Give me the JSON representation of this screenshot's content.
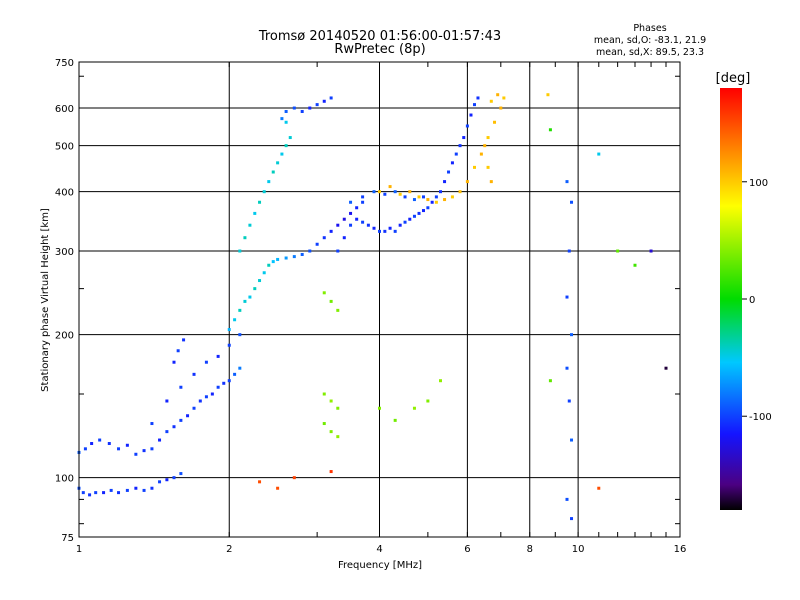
{
  "chart_data": {
    "type": "scatter",
    "title": "Tromsø 20140520 01:56:00-01:57:43",
    "subtitle": "RwPretec (8p)",
    "xlabel": "Frequency [MHz]",
    "ylabel": "Stationary phase Virtual Height [km]",
    "xscale": "log",
    "yscale": "log",
    "xlim": [
      1,
      16
    ],
    "ylim": [
      75,
      750
    ],
    "x_ticks": [
      1,
      2,
      4,
      6,
      8,
      10,
      16
    ],
    "y_ticks": [
      75,
      100,
      200,
      300,
      400,
      500,
      600,
      750
    ],
    "grid": true,
    "info": {
      "heading": "Phases",
      "o_line": "mean, sd,O: -83.1, 21.9",
      "x_line": "mean, sd,X: 89.5, 23.3"
    },
    "colorbar": {
      "label": "[deg]",
      "range": [
        -180,
        180
      ],
      "ticks": [
        -100,
        0,
        100
      ],
      "tick_labels": [
        "-100",
        "0",
        "100"
      ]
    },
    "series": [
      {
        "points": [
          [
            1.0,
            95,
            -95
          ],
          [
            1.02,
            93,
            -100
          ],
          [
            1.05,
            92,
            -105
          ],
          [
            1.08,
            93,
            -100
          ],
          [
            1.12,
            93,
            -110
          ],
          [
            1.16,
            94,
            -100
          ],
          [
            1.2,
            93,
            -105
          ],
          [
            1.25,
            94,
            -100
          ],
          [
            1.3,
            95,
            -110
          ],
          [
            1.35,
            94,
            -100
          ],
          [
            1.4,
            95,
            -105
          ],
          [
            1.45,
            98,
            -100
          ],
          [
            1.5,
            99,
            -110
          ],
          [
            1.55,
            100,
            -100
          ],
          [
            1.6,
            102,
            -95
          ],
          [
            1.0,
            113,
            -90
          ],
          [
            1.03,
            115,
            -100
          ],
          [
            1.06,
            118,
            -110
          ],
          [
            1.1,
            120,
            -100
          ],
          [
            1.15,
            118,
            -105
          ],
          [
            1.2,
            115,
            -100
          ],
          [
            1.25,
            117,
            -110
          ],
          [
            1.3,
            112,
            -100
          ],
          [
            1.35,
            114,
            -105
          ],
          [
            1.4,
            115,
            -100
          ],
          [
            1.45,
            120,
            -110
          ],
          [
            1.5,
            125,
            -100
          ],
          [
            1.55,
            128,
            -105
          ],
          [
            1.6,
            132,
            -100
          ],
          [
            1.65,
            135,
            -110
          ],
          [
            1.7,
            140,
            -100
          ],
          [
            1.75,
            145,
            -105
          ],
          [
            1.8,
            148,
            -100
          ],
          [
            1.85,
            150,
            -110
          ],
          [
            1.9,
            155,
            -100
          ],
          [
            1.95,
            158,
            -105
          ],
          [
            2.0,
            160,
            -100
          ],
          [
            2.05,
            165,
            -90
          ],
          [
            2.1,
            170,
            -80
          ],
          [
            1.4,
            130,
            -100
          ],
          [
            1.5,
            145,
            -110
          ],
          [
            1.6,
            155,
            -100
          ],
          [
            1.7,
            165,
            -105
          ],
          [
            1.8,
            175,
            -100
          ],
          [
            1.9,
            180,
            -110
          ],
          [
            2.0,
            190,
            -100
          ],
          [
            2.1,
            200,
            -95
          ],
          [
            1.55,
            175,
            -110
          ],
          [
            1.58,
            185,
            -100
          ],
          [
            1.62,
            195,
            -105
          ],
          [
            2.0,
            205,
            -60
          ],
          [
            2.05,
            215,
            -50
          ],
          [
            2.1,
            225,
            -40
          ],
          [
            2.15,
            235,
            -45
          ],
          [
            2.2,
            240,
            -50
          ],
          [
            2.25,
            250,
            -40
          ],
          [
            2.3,
            260,
            -45
          ],
          [
            2.35,
            270,
            -50
          ],
          [
            2.4,
            280,
            -40
          ],
          [
            2.45,
            285,
            -55
          ],
          [
            2.5,
            288,
            -60
          ],
          [
            2.6,
            290,
            -70
          ],
          [
            2.7,
            292,
            -80
          ],
          [
            2.8,
            295,
            -90
          ],
          [
            2.9,
            300,
            -95
          ],
          [
            3.0,
            310,
            -100
          ],
          [
            3.1,
            320,
            -105
          ],
          [
            3.2,
            330,
            -110
          ],
          [
            3.3,
            340,
            -120
          ],
          [
            3.4,
            350,
            -125
          ],
          [
            3.5,
            360,
            -120
          ],
          [
            3.6,
            370,
            -110
          ],
          [
            3.7,
            380,
            -100
          ],
          [
            2.1,
            300,
            -45
          ],
          [
            2.15,
            320,
            -40
          ],
          [
            2.2,
            340,
            -45
          ],
          [
            2.25,
            360,
            -50
          ],
          [
            2.3,
            380,
            -40
          ],
          [
            2.35,
            400,
            -45
          ],
          [
            2.4,
            420,
            -50
          ],
          [
            2.45,
            440,
            -40
          ],
          [
            2.5,
            460,
            -45
          ],
          [
            2.55,
            480,
            -50
          ],
          [
            2.6,
            500,
            -40
          ],
          [
            2.65,
            520,
            -45
          ],
          [
            2.6,
            560,
            -50
          ],
          [
            2.55,
            570,
            -80
          ],
          [
            2.6,
            590,
            -90
          ],
          [
            2.7,
            600,
            -95
          ],
          [
            2.8,
            590,
            -100
          ],
          [
            2.9,
            600,
            -110
          ],
          [
            3.0,
            610,
            -100
          ],
          [
            3.1,
            620,
            -110
          ],
          [
            3.2,
            630,
            -100
          ],
          [
            3.3,
            300,
            -100
          ],
          [
            3.4,
            320,
            -110
          ],
          [
            3.5,
            340,
            -100
          ],
          [
            3.6,
            350,
            -110
          ],
          [
            3.7,
            345,
            -100
          ],
          [
            3.8,
            340,
            -105
          ],
          [
            3.9,
            335,
            -110
          ],
          [
            4.0,
            330,
            -100
          ],
          [
            4.1,
            330,
            -105
          ],
          [
            4.2,
            335,
            -110
          ],
          [
            4.3,
            330,
            -100
          ],
          [
            4.4,
            340,
            -110
          ],
          [
            4.5,
            345,
            -100
          ],
          [
            4.6,
            350,
            -110
          ],
          [
            4.7,
            355,
            -100
          ],
          [
            4.8,
            360,
            -105
          ],
          [
            4.9,
            365,
            -110
          ],
          [
            5.0,
            370,
            -100
          ],
          [
            5.1,
            380,
            -110
          ],
          [
            5.2,
            390,
            -100
          ],
          [
            5.3,
            400,
            -105
          ],
          [
            5.4,
            420,
            -110
          ],
          [
            5.5,
            440,
            -100
          ],
          [
            5.6,
            460,
            -110
          ],
          [
            5.7,
            480,
            -100
          ],
          [
            5.8,
            500,
            -105
          ],
          [
            5.9,
            520,
            -110
          ],
          [
            6.0,
            550,
            -100
          ],
          [
            6.1,
            580,
            -110
          ],
          [
            6.2,
            610,
            -100
          ],
          [
            6.3,
            630,
            -105
          ],
          [
            3.5,
            380,
            -90
          ],
          [
            3.7,
            390,
            -100
          ],
          [
            3.9,
            400,
            -90
          ],
          [
            4.1,
            395,
            -100
          ],
          [
            4.3,
            400,
            -90
          ],
          [
            4.5,
            390,
            -100
          ],
          [
            4.7,
            385,
            -90
          ],
          [
            4.9,
            390,
            -100
          ],
          [
            4.0,
            400,
            100
          ],
          [
            4.2,
            410,
            110
          ],
          [
            4.4,
            395,
            100
          ],
          [
            4.6,
            400,
            110
          ],
          [
            4.8,
            390,
            100
          ],
          [
            5.0,
            385,
            110
          ],
          [
            5.2,
            380,
            100
          ],
          [
            5.4,
            385,
            110
          ],
          [
            5.6,
            390,
            100
          ],
          [
            5.8,
            400,
            105
          ],
          [
            6.0,
            420,
            110
          ],
          [
            6.2,
            450,
            100
          ],
          [
            6.4,
            480,
            110
          ],
          [
            6.6,
            520,
            100
          ],
          [
            6.8,
            560,
            105
          ],
          [
            7.0,
            600,
            110
          ],
          [
            6.7,
            620,
            100
          ],
          [
            6.9,
            640,
            110
          ],
          [
            7.1,
            630,
            100
          ],
          [
            6.5,
            500,
            110
          ],
          [
            6.6,
            450,
            100
          ],
          [
            6.7,
            420,
            110
          ],
          [
            3.1,
            245,
            40
          ],
          [
            3.2,
            235,
            35
          ],
          [
            3.3,
            225,
            40
          ],
          [
            3.1,
            150,
            40
          ],
          [
            3.2,
            145,
            45
          ],
          [
            3.3,
            140,
            40
          ],
          [
            3.1,
            130,
            35
          ],
          [
            3.2,
            125,
            40
          ],
          [
            3.3,
            122,
            45
          ],
          [
            2.3,
            98,
            150
          ],
          [
            2.7,
            100,
            155
          ],
          [
            3.2,
            103,
            160
          ],
          [
            2.5,
            95,
            150
          ],
          [
            4.0,
            140,
            40
          ],
          [
            4.3,
            132,
            35
          ],
          [
            4.7,
            140,
            45
          ],
          [
            5.0,
            145,
            40
          ],
          [
            5.3,
            160,
            45
          ],
          [
            8.8,
            160,
            30
          ],
          [
            9.5,
            420,
            -90
          ],
          [
            9.7,
            380,
            -95
          ],
          [
            9.6,
            300,
            -100
          ],
          [
            9.5,
            240,
            -100
          ],
          [
            9.7,
            200,
            -90
          ],
          [
            9.5,
            170,
            -95
          ],
          [
            9.6,
            145,
            -100
          ],
          [
            9.7,
            120,
            -90
          ],
          [
            9.5,
            90,
            -95
          ],
          [
            9.7,
            82,
            -100
          ],
          [
            11.0,
            480,
            -50
          ],
          [
            11.0,
            95,
            150
          ],
          [
            12.0,
            300,
            30
          ],
          [
            13.0,
            280,
            20
          ],
          [
            14.0,
            300,
            -130
          ],
          [
            15.0,
            170,
            -170
          ],
          [
            8.7,
            640,
            100
          ],
          [
            8.8,
            540,
            10
          ]
        ]
      }
    ]
  }
}
